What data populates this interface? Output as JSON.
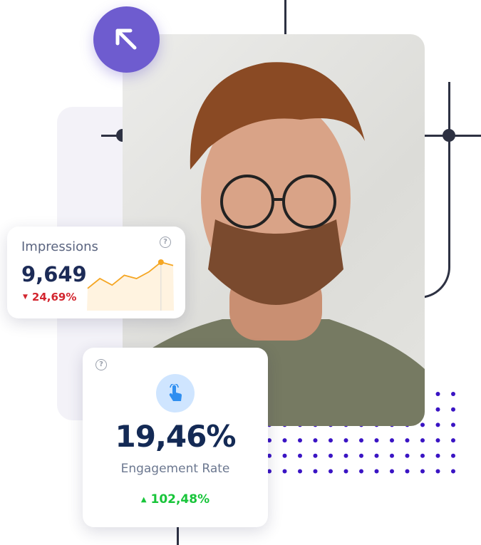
{
  "colors": {
    "accent_purple": "#6e5ccf",
    "dots": "#3a14c4",
    "navy": "#1c2b57",
    "negative": "#d3262f",
    "positive": "#18c53a",
    "chart_line": "#f5a623"
  },
  "impressions": {
    "title": "Impressions",
    "value": "9,649",
    "change": "24,69%",
    "change_direction": "down",
    "help_icon": "question-circle-icon",
    "chart_data": {
      "type": "area",
      "values": [
        2,
        5,
        3,
        6,
        5,
        7,
        10,
        9
      ],
      "highlight_index": 6,
      "title": "",
      "xlabel": "",
      "ylabel": ""
    }
  },
  "engagement": {
    "value": "19,46%",
    "label": "Engagement Rate",
    "change": "102,48%",
    "change_direction": "up",
    "icon": "pointer-hand-icon",
    "help_icon": "question-circle-icon"
  },
  "badge": {
    "icon": "arrow-up-left-icon"
  }
}
